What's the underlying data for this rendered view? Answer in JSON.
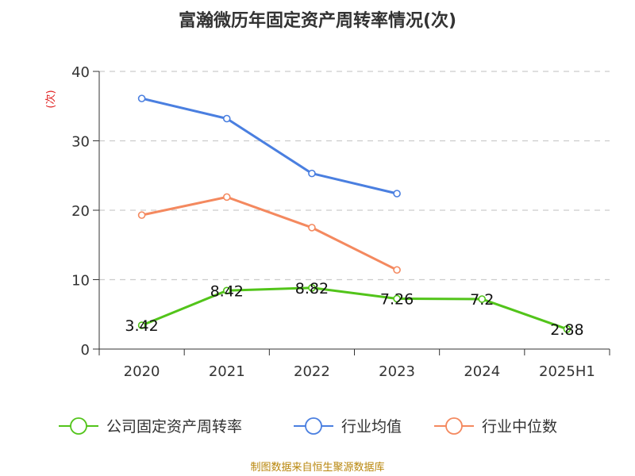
{
  "chart_data": {
    "type": "line",
    "title": "富瀚微历年固定资产周转率情况(次)",
    "ylabel": "(次)",
    "xlabel": "",
    "categories": [
      "2020",
      "2021",
      "2022",
      "2023",
      "2024",
      "2025H1"
    ],
    "ylim": [
      0,
      40
    ],
    "yticks": [
      0,
      10,
      20,
      30,
      40
    ],
    "grid": true,
    "legend_position": "bottom",
    "series": [
      {
        "name": "公司固定资产周转率",
        "color": "#52c41a",
        "values": [
          3.42,
          8.42,
          8.82,
          7.26,
          7.2,
          2.88
        ],
        "labels": [
          "3.42",
          "8.42",
          "8.82",
          "7.26",
          "7.2",
          "2.88"
        ]
      },
      {
        "name": "行业均值",
        "color": "#4a7fe0",
        "values": [
          36.1,
          33.2,
          25.3,
          22.4,
          null,
          null
        ]
      },
      {
        "name": "行业中位数",
        "color": "#f4895f",
        "values": [
          19.3,
          21.9,
          17.5,
          11.4,
          null,
          null
        ]
      }
    ]
  },
  "colors": {
    "ylabel": "#e02020",
    "source": "#b8860b"
  },
  "source": "制图数据来自恒生聚源数据库"
}
